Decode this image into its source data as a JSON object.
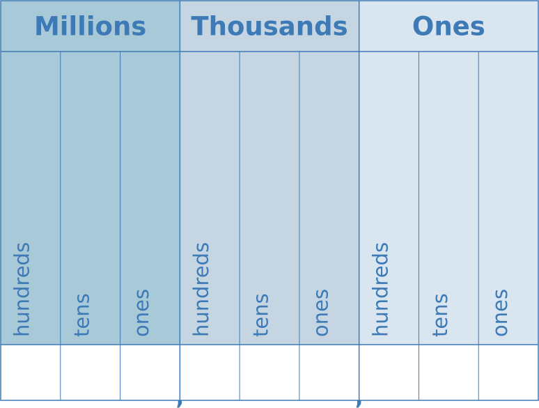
{
  "chart": {
    "groups": [
      {
        "title": "Millions",
        "color": "#a8c9d8",
        "columns": [
          "hundreds",
          "tens",
          "ones"
        ]
      },
      {
        "title": "Thousands",
        "color": "#c5d6e2",
        "columns": [
          "hundreds",
          "tens",
          "ones"
        ]
      },
      {
        "title": "Ones",
        "color": "#d9e5ef",
        "columns": [
          "hundreds",
          "tens",
          "ones"
        ]
      }
    ],
    "separator": ",",
    "text_color": "#3d7ab6",
    "line_color": "#3d7ab6"
  }
}
